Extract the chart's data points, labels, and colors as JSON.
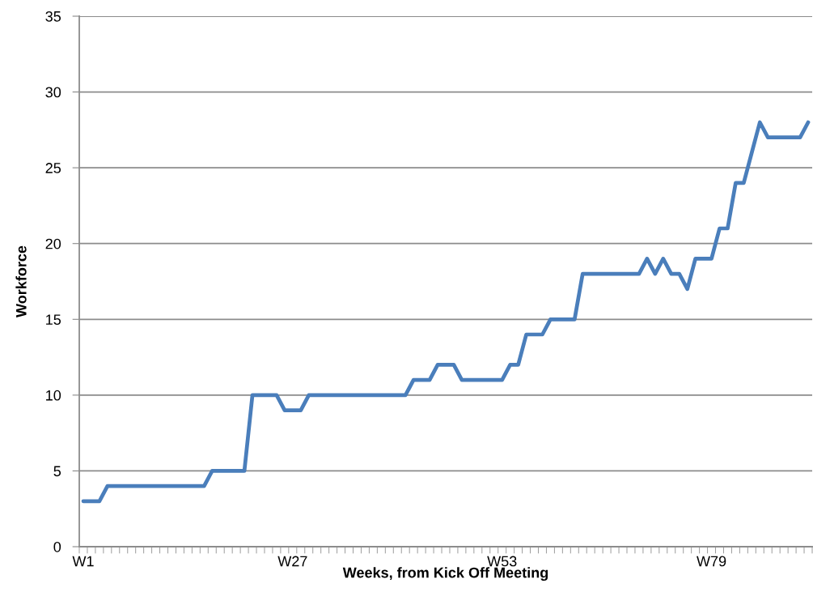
{
  "chart_data": {
    "type": "line",
    "xlabel": "Weeks, from Kick Off Meeting",
    "ylabel": "Workforce",
    "categories": [
      "W1",
      null,
      null,
      null,
      null,
      null,
      null,
      null,
      null,
      null,
      null,
      null,
      null,
      null,
      null,
      null,
      null,
      null,
      null,
      null,
      null,
      null,
      null,
      null,
      null,
      null,
      "W27",
      null,
      null,
      null,
      null,
      null,
      null,
      null,
      null,
      null,
      null,
      null,
      null,
      null,
      null,
      null,
      null,
      null,
      null,
      null,
      null,
      null,
      null,
      null,
      null,
      null,
      "W53",
      null,
      null,
      null,
      null,
      null,
      null,
      null,
      null,
      null,
      null,
      null,
      null,
      null,
      null,
      null,
      null,
      null,
      null,
      null,
      null,
      null,
      null,
      null,
      null,
      null,
      "W79",
      null,
      null,
      null,
      null,
      null,
      null,
      null,
      null,
      null,
      null,
      null,
      null
    ],
    "series": [
      {
        "color": "#4a7ebb",
        "values": [
          3,
          3,
          3,
          4,
          4,
          4,
          4,
          4,
          4,
          4,
          4,
          4,
          4,
          4,
          4,
          4,
          5,
          5,
          5,
          5,
          5,
          10,
          10,
          10,
          10,
          9,
          9,
          9,
          10,
          10,
          10,
          10,
          10,
          10,
          10,
          10,
          10,
          10,
          10,
          10,
          10,
          11,
          11,
          11,
          12,
          12,
          12,
          11,
          11,
          11,
          11,
          11,
          11,
          12,
          12,
          14,
          14,
          14,
          15,
          15,
          15,
          15,
          18,
          18,
          18,
          18,
          18,
          18,
          18,
          18,
          19,
          18,
          19,
          18,
          18,
          17,
          19,
          19,
          19,
          21,
          21,
          24,
          24,
          26,
          28,
          27,
          27,
          27,
          27,
          27,
          28
        ]
      }
    ],
    "ylim": [
      0,
      35
    ],
    "yticks": [
      0,
      5,
      10,
      15,
      20,
      25,
      30,
      35
    ],
    "grid": "y",
    "legend": false,
    "marker": "none",
    "line_style": "solid"
  }
}
